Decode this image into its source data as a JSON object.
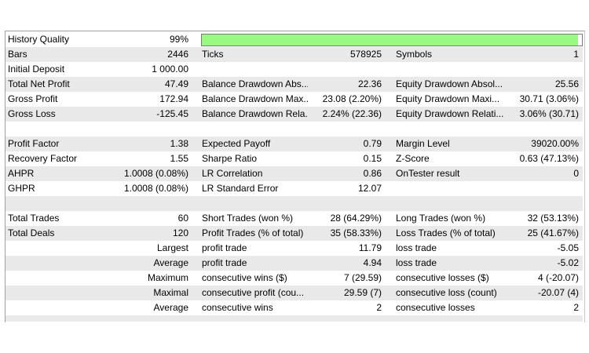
{
  "history_quality": {
    "label": "History Quality",
    "value": "99%",
    "percent": 99,
    "bar_color": "#98fa80"
  },
  "rows": [
    [
      "Bars",
      "2446",
      "Ticks",
      "578925",
      "Symbols",
      "1"
    ],
    [
      "Initial Deposit",
      "1 000.00",
      "",
      "",
      "",
      ""
    ],
    [
      "Total Net Profit",
      "47.49",
      "Balance Drawdown Abs...",
      "22.36",
      "Equity Drawdown Absol...",
      "25.56"
    ],
    [
      "Gross Profit",
      "172.94",
      "Balance Drawdown Max...",
      "23.08 (2.20%)",
      "Equity Drawdown Maxi...",
      "30.71 (3.06%)"
    ],
    [
      "Gross Loss",
      "-125.45",
      "Balance Drawdown Rela...",
      "2.24% (22.36)",
      "Equity Drawdown Relati...",
      "3.06% (30.71)"
    ],
    [
      "",
      "",
      "",
      "",
      "",
      ""
    ],
    [
      "Profit Factor",
      "1.38",
      "Expected Payoff",
      "0.79",
      "Margin Level",
      "39020.00%"
    ],
    [
      "Recovery Factor",
      "1.55",
      "Sharpe Ratio",
      "0.15",
      "Z-Score",
      "0.63 (47.13%)"
    ],
    [
      "AHPR",
      "1.0008 (0.08%)",
      "LR Correlation",
      "0.86",
      "OnTester result",
      "0"
    ],
    [
      "GHPR",
      "1.0008 (0.08%)",
      "LR Standard Error",
      "12.07",
      "",
      ""
    ],
    [
      "",
      "",
      "",
      "",
      "",
      ""
    ],
    [
      "Total Trades",
      "60",
      "Short Trades (won %)",
      "28 (64.29%)",
      "Long Trades (won %)",
      "32 (53.13%)"
    ],
    [
      "Total Deals",
      "120",
      "Profit Trades (% of total)",
      "35 (58.33%)",
      "Loss Trades (% of total)",
      "25 (41.67%)"
    ],
    [
      "",
      "Largest",
      "profit trade",
      "11.79",
      "loss trade",
      "-5.05"
    ],
    [
      "",
      "Average",
      "profit trade",
      "4.94",
      "loss trade",
      "-5.02"
    ],
    [
      "",
      "Maximum",
      "consecutive wins ($)",
      "7 (29.59)",
      "consecutive losses ($)",
      "4 (-20.07)"
    ],
    [
      "",
      "Maximal",
      "consecutive profit (cou...",
      "29.59 (7)",
      "consecutive loss (count)",
      "-20.07 (4)"
    ],
    [
      "",
      "Average",
      "consecutive wins",
      "2",
      "consecutive losses",
      "2"
    ],
    [
      "",
      "",
      "",
      "",
      "",
      ""
    ]
  ]
}
